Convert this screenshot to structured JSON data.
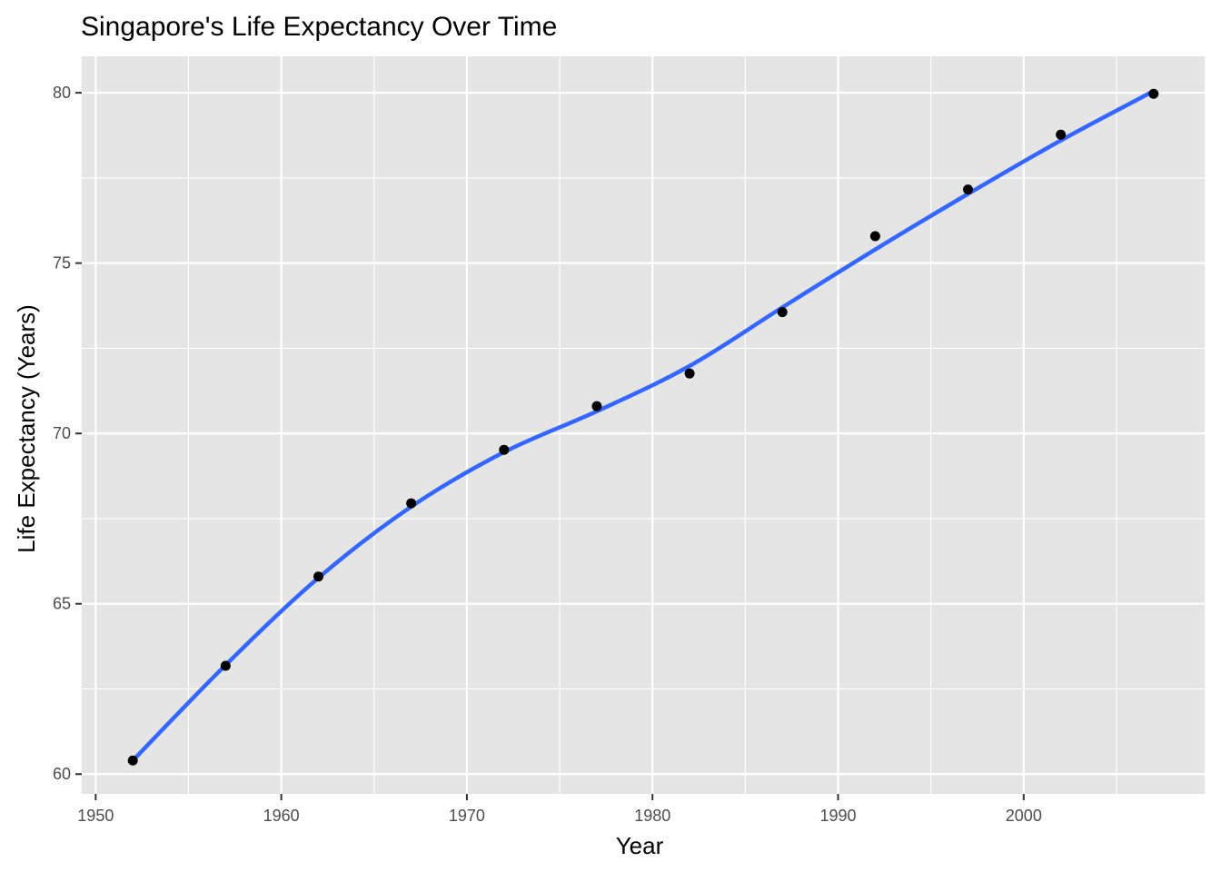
{
  "chart_data": {
    "type": "scatter",
    "title": "Singapore's Life Expectancy Over Time",
    "xlabel": "Year",
    "ylabel": "Life Expectancy (Years)",
    "xlim": [
      1949.25,
      2009.75
    ],
    "ylim": [
      59.42,
      81.07
    ],
    "x_ticks": [
      1950,
      1960,
      1970,
      1980,
      1990,
      2000
    ],
    "x_tick_labels": [
      "1950",
      "1960",
      "1970",
      "1980",
      "1990",
      "2000"
    ],
    "x_minor_ticks": [
      1955,
      1965,
      1975,
      1985,
      1995,
      2005
    ],
    "y_ticks": [
      60,
      65,
      70,
      75,
      80
    ],
    "y_tick_labels": [
      "60",
      "65",
      "70",
      "75",
      "80"
    ],
    "y_minor_ticks": [
      62.5,
      67.5,
      72.5,
      77.5
    ],
    "grid": true,
    "legend": "none",
    "colors": {
      "panel": "#e5e5e5",
      "grid": "#ffffff",
      "point": "#000000",
      "smooth_line": "#3366ff",
      "tick_mark": "#333333"
    },
    "series": [
      {
        "type": "points",
        "x": [
          1952,
          1957,
          1962,
          1967,
          1972,
          1977,
          1982,
          1987,
          1992,
          1997,
          2002,
          2007
        ],
        "y": [
          60.4,
          63.18,
          65.8,
          67.95,
          69.52,
          70.8,
          71.76,
          73.56,
          75.79,
          77.16,
          78.77,
          79.97
        ]
      },
      {
        "type": "smooth",
        "x": [
          1952,
          1957,
          1962,
          1967,
          1972,
          1977,
          1982,
          1987,
          1992,
          1997,
          2002,
          2007
        ],
        "y": [
          60.4,
          63.2,
          65.76,
          67.85,
          69.45,
          70.65,
          71.98,
          73.7,
          75.4,
          77.03,
          78.6,
          80.05
        ]
      }
    ]
  }
}
